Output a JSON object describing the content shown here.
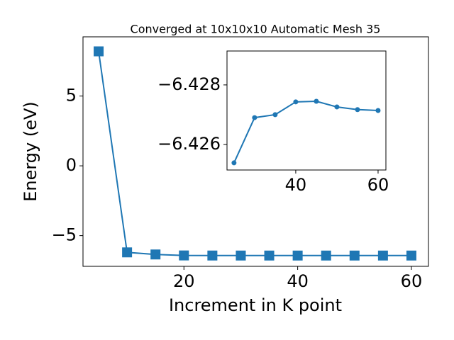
{
  "chart_data": [
    {
      "type": "line",
      "title": "Converged at 10x10x10 Automatic Mesh 35",
      "xlabel": "Increment in K point",
      "ylabel": "Energy (eV)",
      "x": [
        5,
        10,
        15,
        20,
        25,
        30,
        35,
        40,
        45,
        50,
        55,
        60
      ],
      "series": [
        {
          "color": "#1f77b4",
          "marker": "square",
          "values": [
            8.2,
            -6.2,
            -6.35,
            -6.42,
            -6.42538,
            -6.4269,
            -6.427,
            -6.42743,
            -6.42745,
            -6.42726,
            -6.42717,
            -6.42714
          ]
        }
      ],
      "xlim": [
        2.25,
        63
      ],
      "xticks": [
        20,
        40,
        60
      ],
      "ylim": [
        -7.2,
        9.24
      ],
      "yticks": [
        {
          "value": -5,
          "label": "−5"
        },
        0,
        5
      ]
    },
    {
      "type": "line",
      "x": [
        25,
        30,
        35,
        40,
        45,
        50,
        55,
        60
      ],
      "series": [
        {
          "color": "#1f77b4",
          "marker": "circle",
          "values": [
            -6.42538,
            -6.4269,
            -6.427,
            -6.42743,
            -6.42745,
            -6.42726,
            -6.42717,
            -6.42714
          ]
        }
      ],
      "xlim": [
        23.3,
        61.9
      ],
      "xticks": [
        40,
        60
      ],
      "ylim": [
        -6.42514,
        -6.42914
      ],
      "yticks": [
        {
          "value": -6.426,
          "label": "−6.426"
        },
        {
          "value": -6.428,
          "label": "−6.428"
        }
      ]
    }
  ]
}
